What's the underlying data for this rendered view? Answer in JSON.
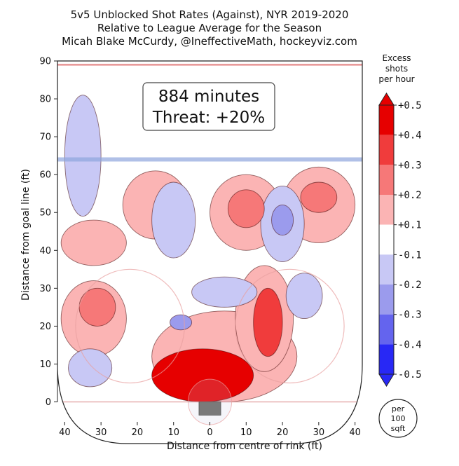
{
  "chart_data": {
    "type": "heatmap",
    "title_lines": [
      "5v5 Unblocked Shot Rates (Against), NYR 2019-2020",
      "Relative to League Average for the Season",
      "Micah Blake McCurdy, @IneffectiveMath, hockeyviz.com"
    ],
    "xlabel": "Distance from centre of rink (ft)",
    "ylabel": "Distance from goal line (ft)",
    "xlim": [
      -42,
      42
    ],
    "ylim": [
      -11,
      90
    ],
    "x_ticks": [
      -40,
      -30,
      -20,
      -10,
      0,
      10,
      20,
      30,
      40
    ],
    "x_tick_labels": [
      "40",
      "30",
      "20",
      "10",
      "0",
      "10",
      "20",
      "30",
      "40"
    ],
    "y_ticks": [
      0,
      10,
      20,
      30,
      40,
      50,
      60,
      70,
      80,
      90
    ],
    "y_tick_labels": [
      "0",
      "10",
      "20",
      "30",
      "40",
      "50",
      "60",
      "70",
      "80",
      "90"
    ],
    "annotation_lines": [
      "884 minutes",
      "Threat: +20%"
    ],
    "colorbar": {
      "title_lines": [
        "Excess",
        "shots",
        "per hour"
      ],
      "tick_labels": [
        "+0.5",
        "+0.4",
        "+0.3",
        "+0.2",
        "+0.1",
        "-0.1",
        "-0.2",
        "-0.3",
        "-0.4",
        "-0.5"
      ],
      "band_colors": [
        "#e60000",
        "#f03c3c",
        "#f67878",
        "#fbb4b4",
        "#ffffff",
        "#c8c8f5",
        "#9b9bed",
        "#6464ee",
        "#2828f5"
      ]
    },
    "unit_badge_lines": [
      "per",
      "100",
      "sqft"
    ],
    "regions": [
      {
        "level": 0.45,
        "cx": -2,
        "cy": 7,
        "rx": 14,
        "ry": 7
      },
      {
        "level": 0.35,
        "cx": 16,
        "cy": 21,
        "rx": 4,
        "ry": 9
      },
      {
        "level": 0.25,
        "cx": 10,
        "cy": 51,
        "rx": 5,
        "ry": 5
      },
      {
        "level": 0.25,
        "cx": 30,
        "cy": 54,
        "rx": 5,
        "ry": 4
      },
      {
        "level": 0.25,
        "cx": -31,
        "cy": 25,
        "rx": 5,
        "ry": 5
      },
      {
        "level": 0.15,
        "cx": -32,
        "cy": 22,
        "rx": 9,
        "ry": 10
      },
      {
        "level": 0.15,
        "cx": 4,
        "cy": 12,
        "rx": 20,
        "ry": 12
      },
      {
        "level": 0.15,
        "cx": 15,
        "cy": 22,
        "rx": 8,
        "ry": 14
      },
      {
        "level": 0.15,
        "cx": 10,
        "cy": 50,
        "rx": 10,
        "ry": 10
      },
      {
        "level": 0.15,
        "cx": 30,
        "cy": 52,
        "rx": 10,
        "ry": 10
      },
      {
        "level": 0.15,
        "cx": -32,
        "cy": 42,
        "rx": 9,
        "ry": 6
      },
      {
        "level": 0.15,
        "cx": -15,
        "cy": 52,
        "rx": 9,
        "ry": 9
      },
      {
        "level": -0.15,
        "cx": -35,
        "cy": 65,
        "rx": 5,
        "ry": 16
      },
      {
        "level": -0.15,
        "cx": -10,
        "cy": 48,
        "rx": 6,
        "ry": 10
      },
      {
        "level": -0.15,
        "cx": 20,
        "cy": 47,
        "rx": 6,
        "ry": 10
      },
      {
        "level": -0.15,
        "cx": 26,
        "cy": 28,
        "rx": 5,
        "ry": 6
      },
      {
        "level": -0.15,
        "cx": 4,
        "cy": 29,
        "rx": 9,
        "ry": 4
      },
      {
        "level": -0.15,
        "cx": -33,
        "cy": 9,
        "rx": 6,
        "ry": 5
      },
      {
        "level": -0.25,
        "cx": 20,
        "cy": 48,
        "rx": 3,
        "ry": 4
      },
      {
        "level": -0.25,
        "cx": -8,
        "cy": 21,
        "rx": 3,
        "ry": 2
      }
    ]
  }
}
